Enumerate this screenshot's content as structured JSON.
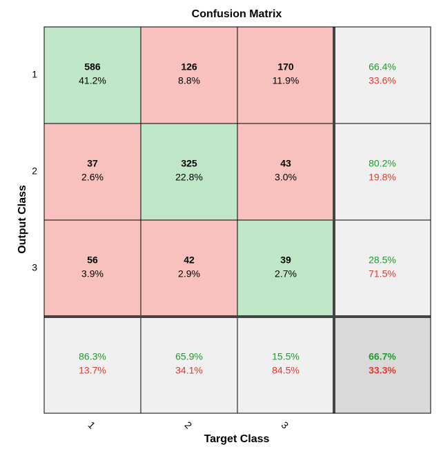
{
  "chart_data": {
    "type": "heatmap",
    "title": "Confusion Matrix",
    "xlabel": "Target Class",
    "ylabel": "Output Class",
    "x_tick_labels": [
      "1",
      "2",
      "3"
    ],
    "y_tick_labels": [
      "1",
      "2",
      "3"
    ],
    "grid": true,
    "colors": {
      "correct_fill": "#bfe6c6",
      "incorrect_fill": "#f8c1be",
      "summary_fill": "#f0f0f0",
      "total_fill": "#d9d9d9",
      "green_text": "#1f9b2e",
      "red_text": "#e03a2e",
      "border": "#000000",
      "divider": "#444444"
    },
    "counts": [
      [
        586,
        126,
        170
      ],
      [
        37,
        325,
        43
      ],
      [
        56,
        42,
        39
      ]
    ],
    "cell_percents": [
      [
        "41.2%",
        "8.8%",
        "11.9%"
      ],
      [
        "2.6%",
        "22.8%",
        "3.0%"
      ],
      [
        "3.9%",
        "2.9%",
        "2.7%"
      ]
    ],
    "row_summary": [
      {
        "correct": "66.4%",
        "incorrect": "33.6%"
      },
      {
        "correct": "80.2%",
        "incorrect": "19.8%"
      },
      {
        "correct": "28.5%",
        "incorrect": "71.5%"
      }
    ],
    "column_summary": [
      {
        "correct": "86.3%",
        "incorrect": "13.7%"
      },
      {
        "correct": "65.9%",
        "incorrect": "34.1%"
      },
      {
        "correct": "15.5%",
        "incorrect": "84.5%"
      }
    ],
    "overall": {
      "correct": "66.7%",
      "incorrect": "33.3%"
    }
  }
}
